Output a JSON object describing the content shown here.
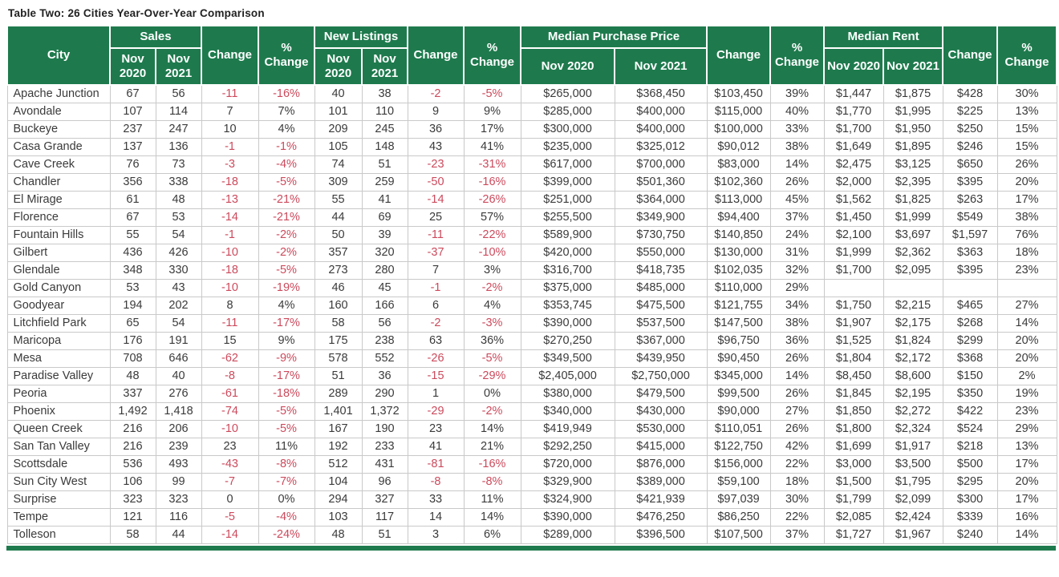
{
  "title": "Table Two: 26 Cities Year-Over-Year Comparison",
  "colors": {
    "header_green": "#1e7a4d",
    "negative_red": "#cc4a5c",
    "text_dark": "#3a3a3a",
    "grid_gray": "#c9c9c9"
  },
  "table": {
    "labels": {
      "city": "City",
      "nov2020": "Nov 2020",
      "nov2021": "Nov 2021",
      "change": "Change",
      "pct_change": "% Change"
    },
    "group_labels": [
      "Sales",
      "New Listings",
      "Median Purchase Price",
      "Median Rent"
    ],
    "rows": [
      {
        "city": "Apache Junction",
        "sales": [
          "67",
          "56",
          "-11",
          "-16%"
        ],
        "new_listings": [
          "40",
          "38",
          "-2",
          "-5%"
        ],
        "median_purchase_price": [
          "$265,000",
          "$368,450",
          "$103,450",
          "39%"
        ],
        "median_rent": [
          "$1,447",
          "$1,875",
          "$428",
          "30%"
        ]
      },
      {
        "city": "Avondale",
        "sales": [
          "107",
          "114",
          "7",
          "7%"
        ],
        "new_listings": [
          "101",
          "110",
          "9",
          "9%"
        ],
        "median_purchase_price": [
          "$285,000",
          "$400,000",
          "$115,000",
          "40%"
        ],
        "median_rent": [
          "$1,770",
          "$1,995",
          "$225",
          "13%"
        ]
      },
      {
        "city": "Buckeye",
        "sales": [
          "237",
          "247",
          "10",
          "4%"
        ],
        "new_listings": [
          "209",
          "245",
          "36",
          "17%"
        ],
        "median_purchase_price": [
          "$300,000",
          "$400,000",
          "$100,000",
          "33%"
        ],
        "median_rent": [
          "$1,700",
          "$1,950",
          "$250",
          "15%"
        ]
      },
      {
        "city": "Casa Grande",
        "sales": [
          "137",
          "136",
          "-1",
          "-1%"
        ],
        "new_listings": [
          "105",
          "148",
          "43",
          "41%"
        ],
        "median_purchase_price": [
          "$235,000",
          "$325,012",
          "$90,012",
          "38%"
        ],
        "median_rent": [
          "$1,649",
          "$1,895",
          "$246",
          "15%"
        ]
      },
      {
        "city": "Cave Creek",
        "sales": [
          "76",
          "73",
          "-3",
          "-4%"
        ],
        "new_listings": [
          "74",
          "51",
          "-23",
          "-31%"
        ],
        "median_purchase_price": [
          "$617,000",
          "$700,000",
          "$83,000",
          "14%"
        ],
        "median_rent": [
          "$2,475",
          "$3,125",
          "$650",
          "26%"
        ]
      },
      {
        "city": "Chandler",
        "sales": [
          "356",
          "338",
          "-18",
          "-5%"
        ],
        "new_listings": [
          "309",
          "259",
          "-50",
          "-16%"
        ],
        "median_purchase_price": [
          "$399,000",
          "$501,360",
          "$102,360",
          "26%"
        ],
        "median_rent": [
          "$2,000",
          "$2,395",
          "$395",
          "20%"
        ]
      },
      {
        "city": "El Mirage",
        "sales": [
          "61",
          "48",
          "-13",
          "-21%"
        ],
        "new_listings": [
          "55",
          "41",
          "-14",
          "-26%"
        ],
        "median_purchase_price": [
          "$251,000",
          "$364,000",
          "$113,000",
          "45%"
        ],
        "median_rent": [
          "$1,562",
          "$1,825",
          "$263",
          "17%"
        ]
      },
      {
        "city": "Florence",
        "sales": [
          "67",
          "53",
          "-14",
          "-21%"
        ],
        "new_listings": [
          "44",
          "69",
          "25",
          "57%"
        ],
        "median_purchase_price": [
          "$255,500",
          "$349,900",
          "$94,400",
          "37%"
        ],
        "median_rent": [
          "$1,450",
          "$1,999",
          "$549",
          "38%"
        ]
      },
      {
        "city": "Fountain Hills",
        "sales": [
          "55",
          "54",
          "-1",
          "-2%"
        ],
        "new_listings": [
          "50",
          "39",
          "-11",
          "-22%"
        ],
        "median_purchase_price": [
          "$589,900",
          "$730,750",
          "$140,850",
          "24%"
        ],
        "median_rent": [
          "$2,100",
          "$3,697",
          "$1,597",
          "76%"
        ]
      },
      {
        "city": "Gilbert",
        "sales": [
          "436",
          "426",
          "-10",
          "-2%"
        ],
        "new_listings": [
          "357",
          "320",
          "-37",
          "-10%"
        ],
        "median_purchase_price": [
          "$420,000",
          "$550,000",
          "$130,000",
          "31%"
        ],
        "median_rent": [
          "$1,999",
          "$2,362",
          "$363",
          "18%"
        ]
      },
      {
        "city": "Glendale",
        "sales": [
          "348",
          "330",
          "-18",
          "-5%"
        ],
        "new_listings": [
          "273",
          "280",
          "7",
          "3%"
        ],
        "median_purchase_price": [
          "$316,700",
          "$418,735",
          "$102,035",
          "32%"
        ],
        "median_rent": [
          "$1,700",
          "$2,095",
          "$395",
          "23%"
        ]
      },
      {
        "city": "Gold Canyon",
        "sales": [
          "53",
          "43",
          "-10",
          "-19%"
        ],
        "new_listings": [
          "46",
          "45",
          "-1",
          "-2%"
        ],
        "median_purchase_price": [
          "$375,000",
          "$485,000",
          "$110,000",
          "29%"
        ],
        "median_rent": [
          "",
          "",
          "",
          ""
        ]
      },
      {
        "city": "Goodyear",
        "sales": [
          "194",
          "202",
          "8",
          "4%"
        ],
        "new_listings": [
          "160",
          "166",
          "6",
          "4%"
        ],
        "median_purchase_price": [
          "$353,745",
          "$475,500",
          "$121,755",
          "34%"
        ],
        "median_rent": [
          "$1,750",
          "$2,215",
          "$465",
          "27%"
        ]
      },
      {
        "city": "Litchfield Park",
        "sales": [
          "65",
          "54",
          "-11",
          "-17%"
        ],
        "new_listings": [
          "58",
          "56",
          "-2",
          "-3%"
        ],
        "median_purchase_price": [
          "$390,000",
          "$537,500",
          "$147,500",
          "38%"
        ],
        "median_rent": [
          "$1,907",
          "$2,175",
          "$268",
          "14%"
        ]
      },
      {
        "city": "Maricopa",
        "sales": [
          "176",
          "191",
          "15",
          "9%"
        ],
        "new_listings": [
          "175",
          "238",
          "63",
          "36%"
        ],
        "median_purchase_price": [
          "$270,250",
          "$367,000",
          "$96,750",
          "36%"
        ],
        "median_rent": [
          "$1,525",
          "$1,824",
          "$299",
          "20%"
        ]
      },
      {
        "city": "Mesa",
        "sales": [
          "708",
          "646",
          "-62",
          "-9%"
        ],
        "new_listings": [
          "578",
          "552",
          "-26",
          "-5%"
        ],
        "median_purchase_price": [
          "$349,500",
          "$439,950",
          "$90,450",
          "26%"
        ],
        "median_rent": [
          "$1,804",
          "$2,172",
          "$368",
          "20%"
        ]
      },
      {
        "city": "Paradise Valley",
        "sales": [
          "48",
          "40",
          "-8",
          "-17%"
        ],
        "new_listings": [
          "51",
          "36",
          "-15",
          "-29%"
        ],
        "median_purchase_price": [
          "$2,405,000",
          "$2,750,000",
          "$345,000",
          "14%"
        ],
        "median_rent": [
          "$8,450",
          "$8,600",
          "$150",
          "2%"
        ]
      },
      {
        "city": "Peoria",
        "sales": [
          "337",
          "276",
          "-61",
          "-18%"
        ],
        "new_listings": [
          "289",
          "290",
          "1",
          "0%"
        ],
        "median_purchase_price": [
          "$380,000",
          "$479,500",
          "$99,500",
          "26%"
        ],
        "median_rent": [
          "$1,845",
          "$2,195",
          "$350",
          "19%"
        ]
      },
      {
        "city": "Phoenix",
        "sales": [
          "1,492",
          "1,418",
          "-74",
          "-5%"
        ],
        "new_listings": [
          "1,401",
          "1,372",
          "-29",
          "-2%"
        ],
        "median_purchase_price": [
          "$340,000",
          "$430,000",
          "$90,000",
          "27%"
        ],
        "median_rent": [
          "$1,850",
          "$2,272",
          "$422",
          "23%"
        ]
      },
      {
        "city": "Queen Creek",
        "sales": [
          "216",
          "206",
          "-10",
          "-5%"
        ],
        "new_listings": [
          "167",
          "190",
          "23",
          "14%"
        ],
        "median_purchase_price": [
          "$419,949",
          "$530,000",
          "$110,051",
          "26%"
        ],
        "median_rent": [
          "$1,800",
          "$2,324",
          "$524",
          "29%"
        ]
      },
      {
        "city": "San Tan Valley",
        "sales": [
          "216",
          "239",
          "23",
          "11%"
        ],
        "new_listings": [
          "192",
          "233",
          "41",
          "21%"
        ],
        "median_purchase_price": [
          "$292,250",
          "$415,000",
          "$122,750",
          "42%"
        ],
        "median_rent": [
          "$1,699",
          "$1,917",
          "$218",
          "13%"
        ]
      },
      {
        "city": "Scottsdale",
        "sales": [
          "536",
          "493",
          "-43",
          "-8%"
        ],
        "new_listings": [
          "512",
          "431",
          "-81",
          "-16%"
        ],
        "median_purchase_price": [
          "$720,000",
          "$876,000",
          "$156,000",
          "22%"
        ],
        "median_rent": [
          "$3,000",
          "$3,500",
          "$500",
          "17%"
        ]
      },
      {
        "city": "Sun City West",
        "sales": [
          "106",
          "99",
          "-7",
          "-7%"
        ],
        "new_listings": [
          "104",
          "96",
          "-8",
          "-8%"
        ],
        "median_purchase_price": [
          "$329,900",
          "$389,000",
          "$59,100",
          "18%"
        ],
        "median_rent": [
          "$1,500",
          "$1,795",
          "$295",
          "20%"
        ]
      },
      {
        "city": "Surprise",
        "sales": [
          "323",
          "323",
          "0",
          "0%"
        ],
        "new_listings": [
          "294",
          "327",
          "33",
          "11%"
        ],
        "median_purchase_price": [
          "$324,900",
          "$421,939",
          "$97,039",
          "30%"
        ],
        "median_rent": [
          "$1,799",
          "$2,099",
          "$300",
          "17%"
        ]
      },
      {
        "city": "Tempe",
        "sales": [
          "121",
          "116",
          "-5",
          "-4%"
        ],
        "new_listings": [
          "103",
          "117",
          "14",
          "14%"
        ],
        "median_purchase_price": [
          "$390,000",
          "$476,250",
          "$86,250",
          "22%"
        ],
        "median_rent": [
          "$2,085",
          "$2,424",
          "$339",
          "16%"
        ]
      },
      {
        "city": "Tolleson",
        "sales": [
          "58",
          "44",
          "-14",
          "-24%"
        ],
        "new_listings": [
          "48",
          "51",
          "3",
          "6%"
        ],
        "median_purchase_price": [
          "$289,000",
          "$396,500",
          "$107,500",
          "37%"
        ],
        "median_rent": [
          "$1,727",
          "$1,967",
          "$240",
          "14%"
        ]
      }
    ]
  }
}
